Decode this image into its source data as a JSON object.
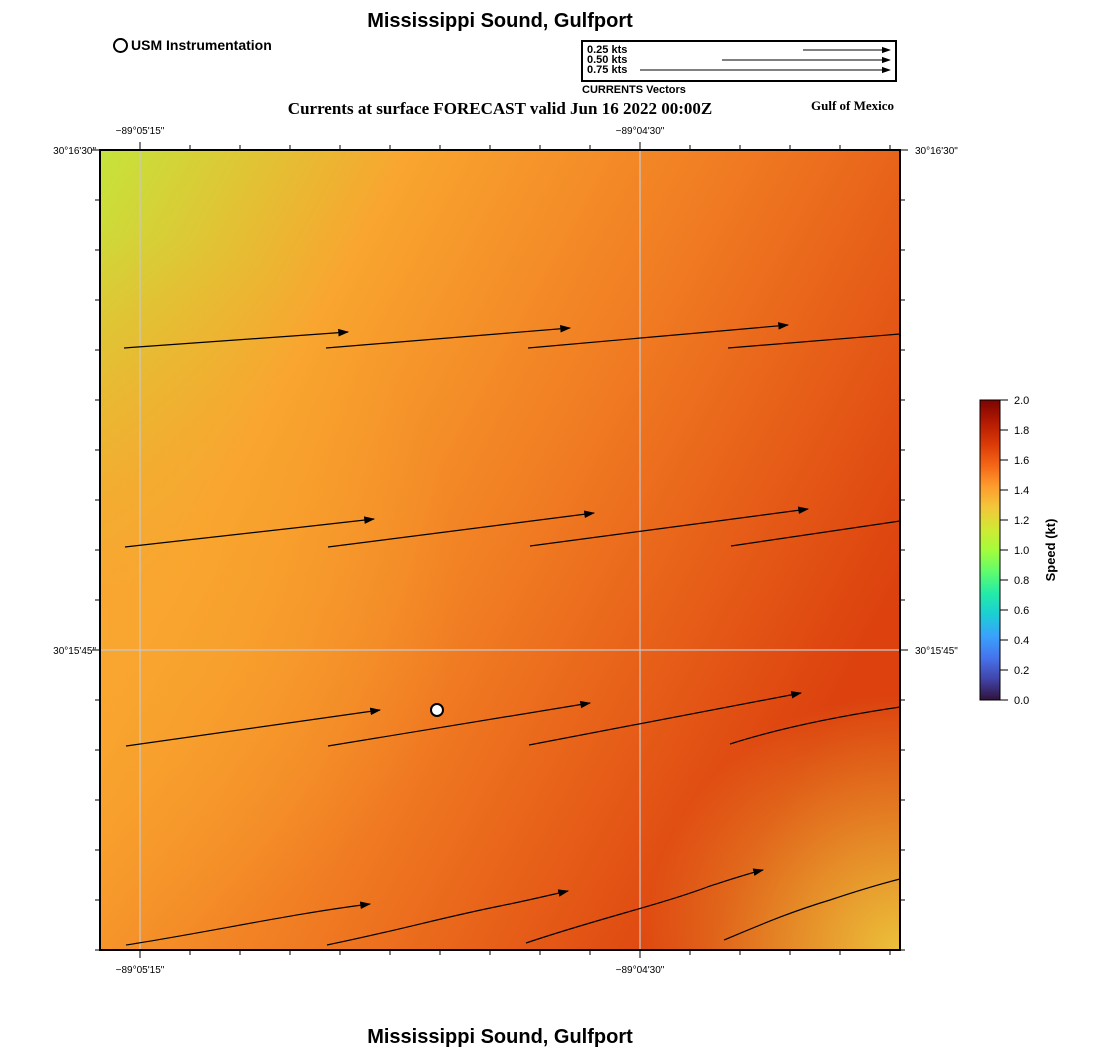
{
  "header": {
    "title": "Mississippi Sound, Gulfport",
    "subtitle": "Currents at surface FORECAST valid Jun 16 2022 00:00Z",
    "region": "Gulf of Mexico",
    "footer_title": "Mississippi Sound, Gulfport"
  },
  "legend": {
    "station_label": "USM Instrumentation",
    "vector_scale": [
      {
        "label": "0.25 kts",
        "speed": 0.25
      },
      {
        "label": "0.50 kts",
        "speed": 0.5
      },
      {
        "label": "0.75 kts",
        "speed": 0.75
      }
    ],
    "vector_caption": "CURRENTS Vectors"
  },
  "map": {
    "lon_labels": [
      "−89°05'15\"",
      "−89°04'30\""
    ],
    "lat_labels": [
      "30°16'30\"",
      "30°15'45\""
    ],
    "station": {
      "name": "USM Instrumentation"
    }
  },
  "colorbar": {
    "title": "Speed (kt)",
    "min": 0.0,
    "max": 2.0,
    "ticks": [
      "0.0",
      "0.2",
      "0.4",
      "0.6",
      "0.8",
      "1.0",
      "1.2",
      "1.4",
      "1.6",
      "1.8",
      "2.0"
    ],
    "colors": [
      "#30123b",
      "#4145ab",
      "#4675ed",
      "#39a2fc",
      "#1bcfd4",
      "#24eca6",
      "#61fc6c",
      "#a4fc3b",
      "#d1e834",
      "#f3c63a",
      "#fe9b2d",
      "#f36315",
      "#d93806",
      "#b11901",
      "#7a0403"
    ]
  },
  "field_colors": {
    "low": "#c6e43a",
    "mid": "#f9a52f",
    "high": "#dc410e",
    "corner": "#ecc03a"
  }
}
